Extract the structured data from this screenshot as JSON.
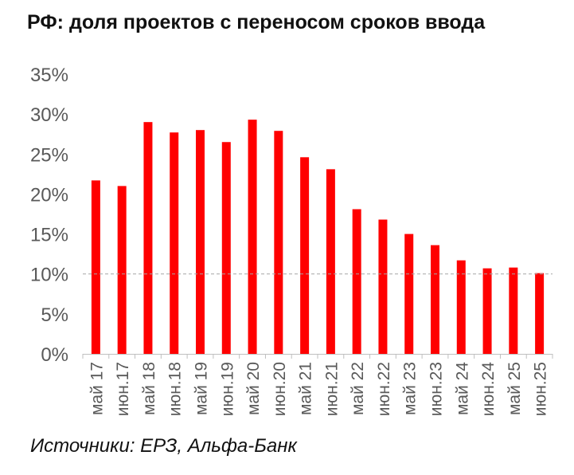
{
  "title": "РФ: доля проектов с переносом сроков ввода",
  "source": "Источники: ЕРЗ, Альфа-Банк",
  "colors": {
    "bar": "#ff0000",
    "reference_line": "#a6a6a6",
    "axis": "#bfbfbf",
    "text": "#595959"
  },
  "chart_data": {
    "type": "bar",
    "categories": [
      "май 17",
      "июн.17",
      "май 18",
      "июн.18",
      "май 19",
      "июн.19",
      "май 20",
      "июн.20",
      "май 21",
      "июн.21",
      "май 22",
      "июн.22",
      "май 23",
      "июн.23",
      "май 24",
      "июн.24",
      "май 25",
      "июн.25"
    ],
    "values": [
      21.7,
      21.0,
      29.0,
      27.7,
      28.0,
      26.5,
      29.3,
      27.9,
      24.6,
      23.1,
      18.1,
      16.8,
      15.0,
      13.6,
      11.7,
      10.7,
      10.8,
      10.1
    ],
    "ylim": [
      0,
      35
    ],
    "yticks": [
      {
        "value": 0,
        "label": "0%"
      },
      {
        "value": 5,
        "label": "5%"
      },
      {
        "value": 10,
        "label": "10%"
      },
      {
        "value": 15,
        "label": "15%"
      },
      {
        "value": 20,
        "label": "20%"
      },
      {
        "value": 25,
        "label": "25%"
      },
      {
        "value": 30,
        "label": "30%"
      },
      {
        "value": 35,
        "label": "35%"
      }
    ],
    "reference_line": 10,
    "grid": false,
    "legend": "none"
  }
}
